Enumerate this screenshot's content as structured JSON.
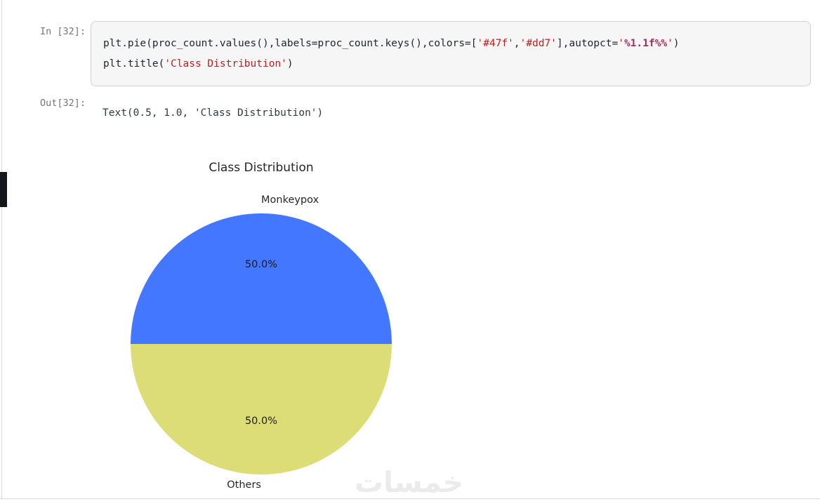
{
  "notebook": {
    "input_prompt": "In [32]:",
    "output_prompt": "Out[32]:",
    "code": {
      "l1_t1": "plt.pie(proc_count.values(),labels=proc_count.keys(),colors=[",
      "l1_s1": "'#47f'",
      "l1_t2": ",",
      "l1_s2": "'#dd7'",
      "l1_t3": "],autopct=",
      "l1_q1": "'",
      "l1_f1": "%1.1f%%",
      "l1_q2": "'",
      "l1_t4": ")",
      "l2_t1": "plt.title(",
      "l2_s1": "'Class Distribution'",
      "l2_t2": ")"
    },
    "output_text": "Text(0.5, 1.0, 'Class Distribution')"
  },
  "chart_data": {
    "type": "pie",
    "title": "Class Distribution",
    "labels": [
      "Monkeypox",
      "Others"
    ],
    "values": [
      50.0,
      50.0
    ],
    "colors": [
      "#4477ff",
      "#dddd77"
    ],
    "autopct_labels": [
      "50.0%",
      "50.0%"
    ],
    "startangle": 0,
    "legend": "none"
  },
  "watermark": {
    "text": "خمسات"
  },
  "ui_colors": {
    "cell_background": "#f6f6f7",
    "cell_border": "#cfd1d3",
    "string_token": "#ba2121",
    "format_token": "#a0305a",
    "prompt_text": "#767676",
    "scroll_thumb": "#15171c",
    "divider": "#d9d9d9"
  }
}
